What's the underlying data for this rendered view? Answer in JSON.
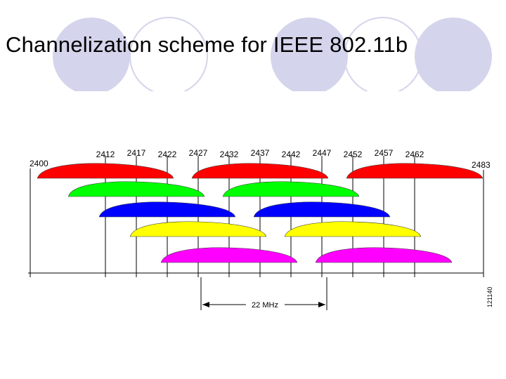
{
  "slide": {
    "title": "Channelization scheme for IEEE 802.11b",
    "decor_circle_color": "#d4d4ec"
  },
  "diagram": {
    "band_start_label": "2400",
    "band_end_label": "2483",
    "channel_frequencies": [
      "2412",
      "2417",
      "2422",
      "2427",
      "2432",
      "2437",
      "2442",
      "2447",
      "2452",
      "2457",
      "2462"
    ],
    "bandwidth_label": "22 MHz",
    "figure_id": "121140",
    "row_colors": [
      "#ff00ff",
      "#ffff00",
      "#0000ff",
      "#00ff00",
      "#ff0000"
    ],
    "channels": [
      {
        "center": "2412",
        "color": "#ff0000"
      },
      {
        "center": "2417",
        "color": "#00ff00"
      },
      {
        "center": "2422",
        "color": "#0000ff"
      },
      {
        "center": "2427",
        "color": "#ffff00"
      },
      {
        "center": "2432",
        "color": "#ff00ff"
      },
      {
        "center": "2437",
        "color": "#ff0000"
      },
      {
        "center": "2442",
        "color": "#00ff00"
      },
      {
        "center": "2447",
        "color": "#0000ff"
      },
      {
        "center": "2452",
        "color": "#ffff00"
      },
      {
        "center": "2457",
        "color": "#ff00ff"
      },
      {
        "center": "2462",
        "color": "#ff0000"
      }
    ]
  }
}
